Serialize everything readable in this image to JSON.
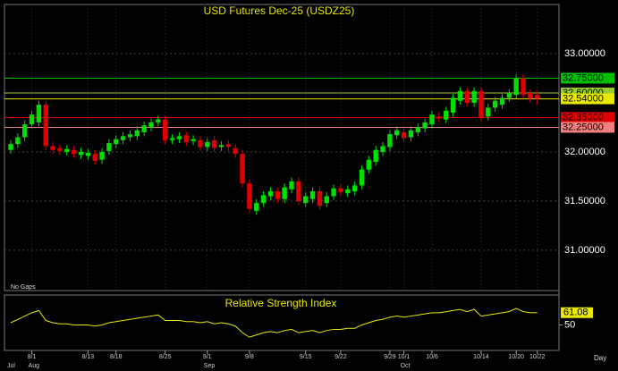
{
  "chart_data": {
    "type": "candlestick",
    "title": "USD  Futures  Dec-25  (USDZ25)",
    "note": "No Gaps",
    "x_label": "Day",
    "categories": [
      null,
      null,
      null,
      "8/1",
      null,
      null,
      null,
      null,
      null,
      null,
      null,
      "8/13",
      null,
      null,
      null,
      "8/18",
      null,
      null,
      null,
      null,
      null,
      null,
      "8/25",
      null,
      null,
      null,
      null,
      null,
      "9/1",
      null,
      null,
      null,
      null,
      null,
      "9/8",
      null,
      null,
      null,
      null,
      null,
      null,
      null,
      "9/15",
      null,
      null,
      null,
      null,
      "9/22",
      null,
      null,
      null,
      null,
      null,
      null,
      "9/29",
      null,
      "10/1",
      null,
      null,
      null,
      "10/6",
      null,
      null,
      null,
      null,
      null,
      null,
      "10/14",
      null,
      null,
      null,
      null,
      "10/20",
      null,
      null,
      "10/22"
    ],
    "months": [
      "Jul",
      null,
      null,
      "Aug",
      null,
      null,
      null,
      null,
      null,
      null,
      null,
      null,
      null,
      null,
      null,
      null,
      null,
      null,
      null,
      null,
      null,
      null,
      null,
      null,
      null,
      null,
      null,
      null,
      "Sep",
      null,
      null,
      null,
      null,
      null,
      null,
      null,
      null,
      null,
      null,
      null,
      null,
      null,
      null,
      null,
      null,
      null,
      null,
      null,
      null,
      null,
      null,
      null,
      null,
      null,
      null,
      null,
      "Oct",
      null,
      null,
      null,
      null,
      null,
      null,
      null,
      null,
      null,
      null,
      null,
      null,
      null,
      null,
      null,
      null,
      null,
      null,
      null
    ],
    "open": [
      32.02,
      32.08,
      32.15,
      32.28,
      32.3,
      32.48,
      32.06,
      32.04,
      32.0,
      32.02,
      31.97,
      31.96,
      31.98,
      31.92,
      32.01,
      32.08,
      32.12,
      32.15,
      32.16,
      32.2,
      32.25,
      32.3,
      32.33,
      32.12,
      32.13,
      32.17,
      32.11,
      32.12,
      32.05,
      32.12,
      32.05,
      32.08,
      32.04,
      31.98,
      31.68,
      31.4,
      31.48,
      31.55,
      31.6,
      31.52,
      31.62,
      31.7,
      31.48,
      31.52,
      31.6,
      31.48,
      31.55,
      31.63,
      31.58,
      31.6,
      31.66,
      31.82,
      31.9,
      32.0,
      32.05,
      32.17,
      32.2,
      32.15,
      32.2,
      32.24,
      32.28,
      32.36,
      32.33,
      32.4,
      32.52,
      32.62,
      32.5,
      32.62,
      32.36,
      32.45,
      32.48,
      32.55,
      32.58,
      32.75,
      32.6,
      32.58
    ],
    "high": [
      32.12,
      32.19,
      32.32,
      32.42,
      32.52,
      32.52,
      32.1,
      32.08,
      32.07,
      32.06,
      32.04,
      32.03,
      32.02,
      32.04,
      32.13,
      32.17,
      32.2,
      32.22,
      32.26,
      32.31,
      32.34,
      32.37,
      32.37,
      32.18,
      32.2,
      32.21,
      32.17,
      32.16,
      32.14,
      32.16,
      32.11,
      32.12,
      32.08,
      32.02,
      31.72,
      31.52,
      31.6,
      31.64,
      31.64,
      31.68,
      31.74,
      31.74,
      31.59,
      31.64,
      31.64,
      31.59,
      31.67,
      31.67,
      31.66,
      31.7,
      31.86,
      31.96,
      32.06,
      32.1,
      32.22,
      32.26,
      32.24,
      32.26,
      32.29,
      32.34,
      32.42,
      32.4,
      32.46,
      32.59,
      32.66,
      32.66,
      32.66,
      32.66,
      32.49,
      32.56,
      32.59,
      32.64,
      32.79,
      32.79,
      32.64,
      32.62
    ],
    "low": [
      31.98,
      32.04,
      32.11,
      32.24,
      32.26,
      32.02,
      31.98,
      31.97,
      31.96,
      31.94,
      31.93,
      31.92,
      31.87,
      31.88,
      31.97,
      32.04,
      32.08,
      32.11,
      32.12,
      32.16,
      32.21,
      32.26,
      32.08,
      32.08,
      32.09,
      32.06,
      32.07,
      32.01,
      32.01,
      32.0,
      32.01,
      32.01,
      31.94,
      31.64,
      31.38,
      31.36,
      31.44,
      31.51,
      31.48,
      31.48,
      31.58,
      31.46,
      31.44,
      31.48,
      31.41,
      31.44,
      31.51,
      31.55,
      31.54,
      31.56,
      31.62,
      31.78,
      31.86,
      31.96,
      32.01,
      32.13,
      32.1,
      32.11,
      32.16,
      32.2,
      32.24,
      32.3,
      32.29,
      32.36,
      32.48,
      32.46,
      32.46,
      32.31,
      32.32,
      32.41,
      32.44,
      32.51,
      32.54,
      32.54,
      32.5,
      32.48
    ],
    "close": [
      32.08,
      32.15,
      32.28,
      32.38,
      32.48,
      32.06,
      32.02,
      32.01,
      32.03,
      31.98,
      32.0,
      31.99,
      31.91,
      32.0,
      32.09,
      32.13,
      32.16,
      32.18,
      32.22,
      32.27,
      32.3,
      32.33,
      32.12,
      32.14,
      32.16,
      32.1,
      32.13,
      32.05,
      32.1,
      32.04,
      32.07,
      32.05,
      31.98,
      31.68,
      31.42,
      31.48,
      31.56,
      31.6,
      31.52,
      31.64,
      31.7,
      31.5,
      31.55,
      31.6,
      31.45,
      31.55,
      31.63,
      31.59,
      31.62,
      31.66,
      31.82,
      31.92,
      32.02,
      32.06,
      32.18,
      32.22,
      32.14,
      32.22,
      32.25,
      32.3,
      32.38,
      32.34,
      32.42,
      32.55,
      32.62,
      32.5,
      32.62,
      32.35,
      32.45,
      32.52,
      32.55,
      32.6,
      32.75,
      32.58,
      32.54,
      32.54
    ],
    "up_color": "#00e000",
    "down_color": "#e00000",
    "ylim": [
      30.59,
      33.5
    ],
    "yticks": [
      {
        "value": 31,
        "label": "31.00000"
      },
      {
        "value": 31.5,
        "label": "31.50000"
      },
      {
        "value": 32,
        "label": "32.00000"
      },
      {
        "value": 33,
        "label": "33.00000"
      }
    ],
    "levels": [
      {
        "value": 32.75,
        "label": "32.75000",
        "color": "#00c000"
      },
      {
        "value": 32.6,
        "label": "32.60000",
        "color": "#9acd32"
      },
      {
        "value": 32.54,
        "label": "32.54000",
        "color": "#e8e800"
      },
      {
        "value": 32.35,
        "label": "32.35000",
        "color": "#e00000"
      },
      {
        "value": 32.25,
        "label": "32.25000",
        "color": "#f08080"
      }
    ],
    "indicator": {
      "type": "line",
      "title": "Relative Strength Index",
      "color": "#e8e800",
      "values": [
        52,
        55,
        58,
        61,
        63,
        54,
        52,
        51,
        51,
        50,
        50,
        50,
        49,
        50,
        52,
        53,
        54,
        55,
        56,
        57,
        58,
        59,
        54,
        54,
        54,
        53,
        53,
        52,
        53,
        51,
        52,
        51,
        49,
        43,
        39,
        41,
        43,
        44,
        43,
        45,
        46,
        43,
        44,
        45,
        43,
        45,
        46,
        46,
        47,
        47,
        50,
        52,
        54,
        55,
        57,
        58,
        57,
        58,
        59,
        60,
        61,
        61,
        62,
        63,
        64,
        62,
        64,
        58,
        59,
        60,
        61,
        62,
        65,
        62,
        61,
        61.08
      ],
      "ylim": [
        27,
        77
      ],
      "yticks": [
        50
      ],
      "last": 61.08
    }
  }
}
